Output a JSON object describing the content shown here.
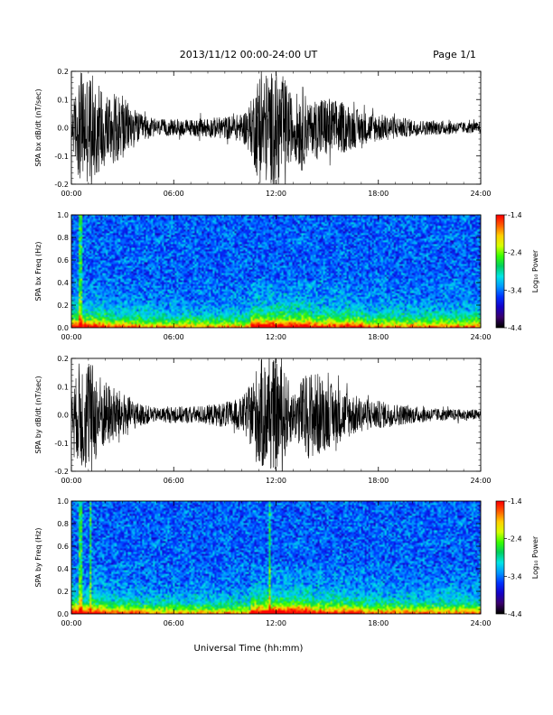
{
  "header": {
    "title": "2013/11/12  00:00-24:00 UT",
    "page": "Page 1/1"
  },
  "footer": {
    "xlabel": "Universal Time (hh:mm)"
  },
  "colorbar_scale": [
    "#000000",
    "#3a006e",
    "#1400c8",
    "#0033ff",
    "#0099ff",
    "#00e5e5",
    "#00d060",
    "#38ff00",
    "#d6ff00",
    "#ffd000",
    "#ff6000",
    "#ff0000"
  ],
  "chart_data": [
    {
      "type": "line",
      "ylabel": "SPA bx dB/dt (nT/sec)",
      "ylim": [
        -0.2,
        0.2
      ],
      "yticks": [
        "0.2",
        "0.1",
        "0.0",
        "-0.1",
        "-0.2"
      ],
      "xticks": [
        "00:00",
        "06:00",
        "12:00",
        "18:00",
        "24:00"
      ],
      "x_range_hours": [
        0,
        24
      ],
      "series": [
        {
          "envelope_x_hours": [
            0,
            0.5,
            1,
            1.5,
            2,
            3,
            4,
            5,
            6,
            7,
            8,
            9,
            10,
            10.5,
            11,
            11.5,
            12,
            12.5,
            13,
            13.5,
            14,
            14.5,
            15,
            16,
            17,
            18,
            19,
            20,
            21,
            22,
            23,
            24
          ],
          "envelope_amplitude": [
            0.06,
            0.2,
            0.2,
            0.17,
            0.14,
            0.11,
            0.05,
            0.03,
            0.03,
            0.03,
            0.035,
            0.04,
            0.05,
            0.09,
            0.2,
            0.2,
            0.2,
            0.18,
            0.1,
            0.16,
            0.08,
            0.12,
            0.11,
            0.09,
            0.06,
            0.05,
            0.04,
            0.03,
            0.025,
            0.025,
            0.02,
            0.02
          ]
        }
      ],
      "grid": false
    },
    {
      "type": "heatmap",
      "ylabel": "SPA bx Freq (Hz)",
      "ylim": [
        0.0,
        1.0
      ],
      "yticks": [
        "1.0",
        "0.8",
        "0.6",
        "0.4",
        "0.2",
        "0.0"
      ],
      "xticks": [
        "00:00",
        "06:00",
        "12:00",
        "18:00",
        "24:00"
      ],
      "colorbar": {
        "label": "Log₁₀ Power",
        "ticks": [
          "-1.4",
          "-2.4",
          "-3.4",
          "-4.4"
        ],
        "range": [
          -4.4,
          -1.4
        ]
      },
      "grid": false
    },
    {
      "type": "line",
      "ylabel": "SPA by dB/dt (nT/sec)",
      "ylim": [
        -0.2,
        0.2
      ],
      "yticks": [
        "0.2",
        "0.1",
        "0.0",
        "-0.1",
        "-0.2"
      ],
      "xticks": [
        "00:00",
        "06:00",
        "12:00",
        "18:00",
        "24:00"
      ],
      "x_range_hours": [
        0,
        24
      ],
      "series": [
        {
          "envelope_x_hours": [
            0,
            0.5,
            1,
            1.5,
            2,
            3,
            4,
            5,
            6,
            7,
            8,
            9,
            10,
            10.5,
            11,
            11.5,
            12,
            12.5,
            13,
            13.5,
            14,
            14.5,
            15,
            16,
            17,
            18,
            19,
            20,
            21,
            22,
            23,
            24
          ],
          "envelope_amplitude": [
            0.06,
            0.2,
            0.2,
            0.16,
            0.12,
            0.08,
            0.04,
            0.025,
            0.03,
            0.03,
            0.035,
            0.045,
            0.06,
            0.11,
            0.2,
            0.2,
            0.2,
            0.16,
            0.08,
            0.13,
            0.16,
            0.15,
            0.12,
            0.09,
            0.06,
            0.05,
            0.04,
            0.03,
            0.025,
            0.02,
            0.02,
            0.02
          ]
        }
      ],
      "grid": false
    },
    {
      "type": "heatmap",
      "ylabel": "SPA by Freq (Hz)",
      "ylim": [
        0.0,
        1.0
      ],
      "yticks": [
        "1.0",
        "0.8",
        "0.6",
        "0.4",
        "0.2",
        "0.0"
      ],
      "xticks": [
        "00:00",
        "06:00",
        "12:00",
        "18:00",
        "24:00"
      ],
      "colorbar": {
        "label": "Log₁₀ Power",
        "ticks": [
          "-1.4",
          "-2.4",
          "-3.4",
          "-4.4"
        ],
        "range": [
          -4.4,
          -1.4
        ]
      },
      "grid": false
    }
  ]
}
